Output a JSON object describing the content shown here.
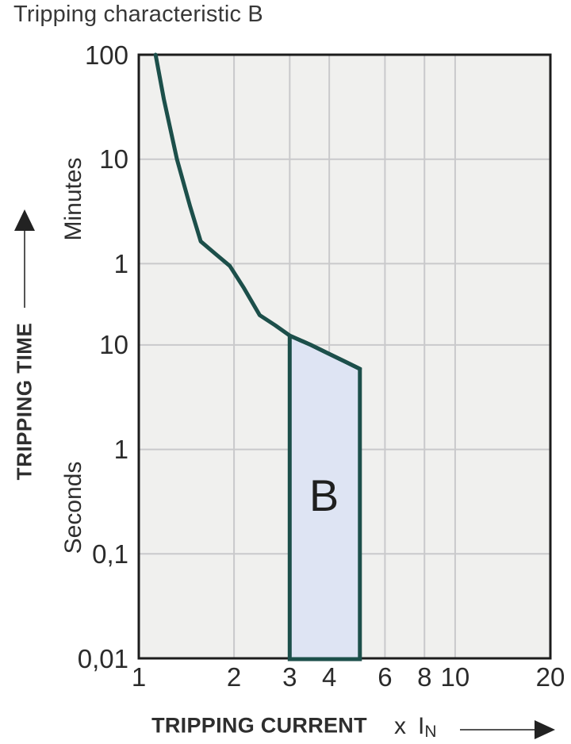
{
  "title": "Tripping characteristic B",
  "colors": {
    "curve": "#1c4f4a",
    "region_fill": "#dee4f3",
    "region_border": "#1c4f4a",
    "plot_background": "#f0f0ee",
    "gridline": "#c9c9cb",
    "axis_border": "#1c1c1c",
    "arrow": "#222222",
    "arrow_line": "#555555",
    "region_label_background": "#ffffff",
    "text": "#333333"
  },
  "y_axis": {
    "label": "TRIPPING TIME",
    "unit_upper": "Minutes",
    "unit_lower": "Seconds"
  },
  "x_axis": {
    "label": "TRIPPING CURRENT",
    "multiplier_prefix": "x",
    "multiplier_base": "I",
    "multiplier_subscript": "N"
  },
  "chart_data": {
    "type": "line",
    "title": "Tripping characteristic B",
    "xlabel": "TRIPPING CURRENT (x IN)",
    "ylabel": "TRIPPING TIME (Minutes / Seconds)",
    "x_scale": "log",
    "y_scale": "log",
    "xlim": [
      1,
      20
    ],
    "ylim_seconds": [
      0.01,
      6000
    ],
    "grid": true,
    "x_ticks": [
      {
        "label": "1",
        "value": 1
      },
      {
        "label": "2",
        "value": 2
      },
      {
        "label": "3",
        "value": 3
      },
      {
        "label": "4",
        "value": 4
      },
      {
        "label": "6",
        "value": 6
      },
      {
        "label": "8",
        "value": 8
      },
      {
        "label": "10",
        "value": 10
      },
      {
        "label": "20",
        "value": 20
      }
    ],
    "x_gridline_values": [
      2,
      3,
      4,
      6,
      8,
      10
    ],
    "y_ticks": [
      {
        "label": "100",
        "unit": "minutes",
        "seconds": 6000
      },
      {
        "label": "10",
        "unit": "minutes",
        "seconds": 600
      },
      {
        "label": "1",
        "unit": "minutes",
        "seconds": 60
      },
      {
        "label": "10",
        "unit": "seconds",
        "seconds": 10
      },
      {
        "label": "1",
        "unit": "seconds",
        "seconds": 1
      },
      {
        "label": "0,1",
        "unit": "seconds",
        "seconds": 0.1
      },
      {
        "label": "0,01",
        "unit": "seconds",
        "seconds": 0.01
      }
    ],
    "y_gridline_seconds": [
      600,
      60,
      10,
      1,
      0.1
    ],
    "series": [
      {
        "name": "B tripping curve (upper limit)",
        "points_x_seconds": [
          [
            1.13,
            6000
          ],
          [
            1.2,
            2255
          ],
          [
            1.32,
            600
          ],
          [
            1.45,
            216
          ],
          [
            1.57,
            98
          ],
          [
            1.75,
            74
          ],
          [
            1.94,
            57
          ],
          [
            2.15,
            35
          ],
          [
            2.41,
            19.3
          ],
          [
            2.7,
            15.4
          ],
          [
            3.0,
            12.3
          ],
          [
            3.5,
            10
          ],
          [
            4.0,
            8.2
          ],
          [
            4.5,
            6.9
          ],
          [
            5.0,
            5.9
          ]
        ]
      }
    ],
    "region": {
      "label": "B",
      "x_range": [
        3,
        5
      ],
      "bottom_seconds": 0.01,
      "top_boundary_points_x_seconds": [
        [
          3.0,
          12.3
        ],
        [
          3.5,
          10
        ],
        [
          4.0,
          8.2
        ],
        [
          4.5,
          6.9
        ],
        [
          5.0,
          5.9
        ]
      ]
    }
  }
}
